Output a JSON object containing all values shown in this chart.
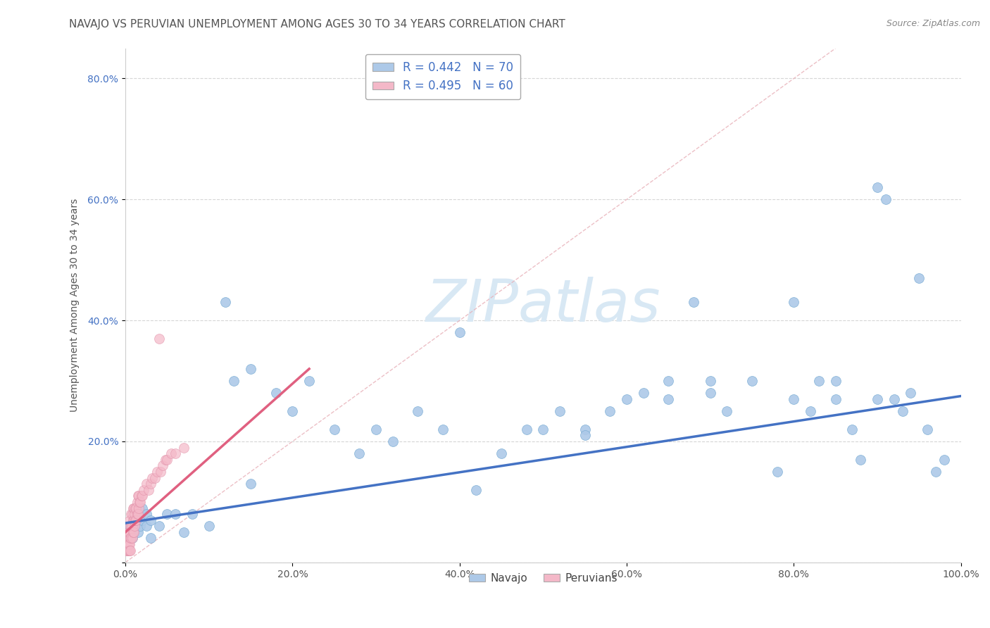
{
  "title": "NAVAJO VS PERUVIAN UNEMPLOYMENT AMONG AGES 30 TO 34 YEARS CORRELATION CHART",
  "source": "Source: ZipAtlas.com",
  "ylabel": "Unemployment Among Ages 30 to 34 years",
  "navajo_R": "0.442",
  "navajo_N": "70",
  "peruvian_R": "0.495",
  "peruvian_N": "60",
  "navajo_color": "#adc9e8",
  "navajo_edge_color": "#7aadd4",
  "navajo_line_color": "#4472c4",
  "peruvian_color": "#f4b8c8",
  "peruvian_edge_color": "#e090a8",
  "peruvian_line_color": "#e06080",
  "legend_text_color": "#4472c4",
  "watermark_text": "ZIPatlas",
  "watermark_color": "#d8e8f4",
  "background_color": "#ffffff",
  "grid_color": "#cccccc",
  "xlim": [
    0,
    1.0
  ],
  "ylim": [
    0,
    0.85
  ],
  "xtick_vals": [
    0.0,
    0.2,
    0.4,
    0.6,
    0.8,
    1.0
  ],
  "ytick_vals": [
    0.0,
    0.2,
    0.4,
    0.6,
    0.8
  ],
  "xtick_labels": [
    "0.0%",
    "20.0%",
    "40.0%",
    "60.0%",
    "80.0%",
    "100.0%"
  ],
  "ytick_labels": [
    "",
    "20.0%",
    "40.0%",
    "60.0%",
    "80.0%"
  ],
  "navajo_x": [
    0.005,
    0.008,
    0.01,
    0.01,
    0.012,
    0.015,
    0.015,
    0.018,
    0.02,
    0.02,
    0.025,
    0.025,
    0.03,
    0.03,
    0.04,
    0.05,
    0.06,
    0.07,
    0.08,
    0.1,
    0.12,
    0.13,
    0.15,
    0.18,
    0.2,
    0.22,
    0.25,
    0.28,
    0.3,
    0.32,
    0.35,
    0.38,
    0.4,
    0.42,
    0.45,
    0.48,
    0.5,
    0.52,
    0.55,
    0.58,
    0.6,
    0.62,
    0.65,
    0.68,
    0.7,
    0.72,
    0.75,
    0.78,
    0.8,
    0.82,
    0.83,
    0.85,
    0.87,
    0.88,
    0.9,
    0.91,
    0.92,
    0.93,
    0.94,
    0.95,
    0.96,
    0.97,
    0.98,
    0.15,
    0.55,
    0.7,
    0.8,
    0.65,
    0.85,
    0.9
  ],
  "navajo_y": [
    0.06,
    0.04,
    0.07,
    0.05,
    0.06,
    0.05,
    0.08,
    0.06,
    0.07,
    0.09,
    0.06,
    0.08,
    0.07,
    0.04,
    0.06,
    0.08,
    0.08,
    0.05,
    0.08,
    0.06,
    0.43,
    0.3,
    0.32,
    0.28,
    0.25,
    0.3,
    0.22,
    0.18,
    0.22,
    0.2,
    0.25,
    0.22,
    0.38,
    0.12,
    0.18,
    0.22,
    0.22,
    0.25,
    0.22,
    0.25,
    0.27,
    0.28,
    0.3,
    0.43,
    0.28,
    0.25,
    0.3,
    0.15,
    0.27,
    0.25,
    0.3,
    0.27,
    0.22,
    0.17,
    0.62,
    0.6,
    0.27,
    0.25,
    0.28,
    0.47,
    0.22,
    0.15,
    0.17,
    0.13,
    0.21,
    0.3,
    0.43,
    0.27,
    0.3,
    0.27
  ],
  "peruvian_x": [
    0.001,
    0.001,
    0.002,
    0.002,
    0.003,
    0.003,
    0.003,
    0.004,
    0.004,
    0.004,
    0.005,
    0.005,
    0.005,
    0.005,
    0.006,
    0.006,
    0.006,
    0.007,
    0.007,
    0.007,
    0.008,
    0.008,
    0.008,
    0.009,
    0.009,
    0.009,
    0.01,
    0.01,
    0.01,
    0.011,
    0.011,
    0.012,
    0.012,
    0.013,
    0.013,
    0.014,
    0.014,
    0.015,
    0.015,
    0.016,
    0.016,
    0.017,
    0.018,
    0.019,
    0.02,
    0.022,
    0.025,
    0.028,
    0.03,
    0.032,
    0.035,
    0.038,
    0.04,
    0.042,
    0.045,
    0.048,
    0.05,
    0.055,
    0.06,
    0.07
  ],
  "peruvian_y": [
    0.02,
    0.03,
    0.02,
    0.04,
    0.03,
    0.05,
    0.02,
    0.03,
    0.05,
    0.02,
    0.03,
    0.05,
    0.07,
    0.02,
    0.04,
    0.06,
    0.02,
    0.04,
    0.06,
    0.08,
    0.04,
    0.06,
    0.08,
    0.05,
    0.07,
    0.09,
    0.05,
    0.07,
    0.09,
    0.06,
    0.08,
    0.07,
    0.09,
    0.07,
    0.09,
    0.08,
    0.1,
    0.08,
    0.11,
    0.09,
    0.11,
    0.1,
    0.1,
    0.11,
    0.11,
    0.12,
    0.13,
    0.12,
    0.13,
    0.14,
    0.14,
    0.15,
    0.37,
    0.15,
    0.16,
    0.17,
    0.17,
    0.18,
    0.18,
    0.19
  ],
  "title_fontsize": 11,
  "axis_fontsize": 10,
  "tick_fontsize": 10,
  "legend_fontsize": 12
}
